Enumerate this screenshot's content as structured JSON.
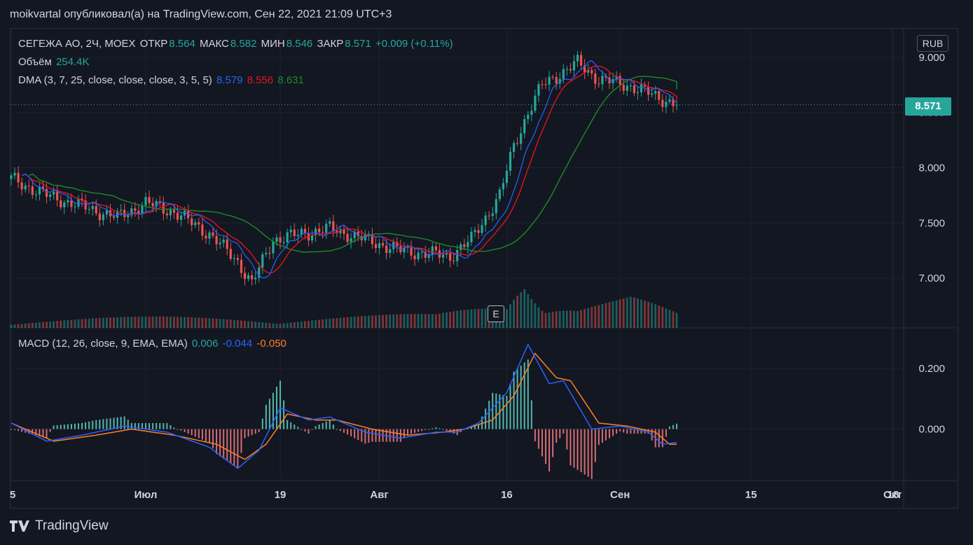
{
  "header": {
    "publisher_line": "moikvartal опубликовал(а) на TradingView.com, Сен 22, 2021 21:09 UTC+3"
  },
  "legend": {
    "symbol": "СЕГЕЖА АО, 2Ч, MOEX",
    "open_label": "ОТКР",
    "open": "8.564",
    "high_label": "МАКС",
    "high": "8.582",
    "low_label": "МИН",
    "low": "8.546",
    "close_label": "ЗАКР",
    "close": "8.571",
    "change": "+0.009 (+0.11%)",
    "volume_label": "Объём",
    "volume": "254.4K",
    "dma_label": "DMA (3, 7, 25, close, close, close, 3, 5, 5)",
    "dma_v1": "8.579",
    "dma_v2": "8.556",
    "dma_v3": "8.631",
    "macd_label": "MACD (12, 26, close, 9, EMA, EMA)",
    "macd_hist": "0.006",
    "macd_line": "-0.044",
    "macd_signal": "-0.050"
  },
  "currency": "RUB",
  "last_price": "8.571",
  "earnings_marker": "E",
  "branding": "TradingView",
  "colors": {
    "up": "#26a69a",
    "down": "#ef5350",
    "dma_fast": "#2962ff",
    "dma_mid": "#e0141e",
    "dma_slow": "#1c8a2a",
    "macd": "#2962ff",
    "signal": "#ff7f27"
  },
  "chart_data": [
    {
      "type": "candlestick",
      "title": "",
      "y_ticks": [
        "9.000",
        "8.500",
        "8.000",
        "7.500",
        "7.000"
      ],
      "ylim": [
        6.55,
        9.05
      ],
      "x_ticks": [
        "5",
        "Июл",
        "19",
        "Авг",
        "16",
        "Сен",
        "15",
        "Окт",
        "18"
      ],
      "close_path": [
        {
          "t": 0,
          "v": 7.9
        },
        {
          "t": 10,
          "v": 7.75
        },
        {
          "t": 20,
          "v": 7.65
        },
        {
          "t": 30,
          "v": 7.55
        },
        {
          "t": 38,
          "v": 7.68
        },
        {
          "t": 46,
          "v": 7.6
        },
        {
          "t": 56,
          "v": 7.4
        },
        {
          "t": 64,
          "v": 7.15
        },
        {
          "t": 68,
          "v": 6.95
        },
        {
          "t": 74,
          "v": 7.35
        },
        {
          "t": 82,
          "v": 7.4
        },
        {
          "t": 90,
          "v": 7.45
        },
        {
          "t": 100,
          "v": 7.35
        },
        {
          "t": 110,
          "v": 7.25
        },
        {
          "t": 124,
          "v": 7.2
        },
        {
          "t": 130,
          "v": 7.35
        },
        {
          "t": 138,
          "v": 7.75
        },
        {
          "t": 142,
          "v": 8.2
        },
        {
          "t": 146,
          "v": 8.5
        },
        {
          "t": 150,
          "v": 8.75
        },
        {
          "t": 160,
          "v": 8.95
        },
        {
          "t": 166,
          "v": 8.8
        },
        {
          "t": 174,
          "v": 8.75
        },
        {
          "t": 182,
          "v": 8.65
        },
        {
          "t": 188,
          "v": 8.571
        }
      ],
      "volume_path": [
        {
          "t": 0,
          "v": 0.1
        },
        {
          "t": 60,
          "v": 0.12
        },
        {
          "t": 120,
          "v": 0.14
        },
        {
          "t": 140,
          "v": 0.3
        },
        {
          "t": 145,
          "v": 0.8
        },
        {
          "t": 150,
          "v": 0.5
        },
        {
          "t": 160,
          "v": 0.3
        },
        {
          "t": 175,
          "v": 0.35
        },
        {
          "t": 188,
          "v": 0.15
        }
      ],
      "series": [
        {
          "name": "Объём",
          "last": "254.4K"
        }
      ],
      "grid": true
    },
    {
      "type": "line",
      "title": "MACD (12, 26, close, 9, EMA, EMA)",
      "y_ticks": [
        "0.200",
        "0.000"
      ],
      "ylim": [
        -0.17,
        0.33
      ],
      "macd_path": [
        {
          "t": 0,
          "v": 0.02
        },
        {
          "t": 10,
          "v": -0.04
        },
        {
          "t": 20,
          "v": -0.02
        },
        {
          "t": 32,
          "v": 0.01
        },
        {
          "t": 44,
          "v": -0.01
        },
        {
          "t": 56,
          "v": -0.06
        },
        {
          "t": 64,
          "v": -0.13
        },
        {
          "t": 70,
          "v": -0.07
        },
        {
          "t": 76,
          "v": 0.07
        },
        {
          "t": 84,
          "v": 0.03
        },
        {
          "t": 90,
          "v": 0.04
        },
        {
          "t": 100,
          "v": -0.01
        },
        {
          "t": 110,
          "v": -0.03
        },
        {
          "t": 120,
          "v": -0.01
        },
        {
          "t": 126,
          "v": -0.01
        },
        {
          "t": 132,
          "v": 0.02
        },
        {
          "t": 140,
          "v": 0.12
        },
        {
          "t": 146,
          "v": 0.28
        },
        {
          "t": 152,
          "v": 0.15
        },
        {
          "t": 156,
          "v": 0.16
        },
        {
          "t": 164,
          "v": 0.0
        },
        {
          "t": 172,
          "v": 0.01
        },
        {
          "t": 180,
          "v": -0.01
        },
        {
          "t": 184,
          "v": -0.05
        },
        {
          "t": 188,
          "v": -0.044
        }
      ],
      "signal_path": [
        {
          "t": 0,
          "v": 0.02
        },
        {
          "t": 12,
          "v": -0.04
        },
        {
          "t": 24,
          "v": -0.02
        },
        {
          "t": 34,
          "v": 0.0
        },
        {
          "t": 46,
          "v": -0.02
        },
        {
          "t": 58,
          "v": -0.05
        },
        {
          "t": 66,
          "v": -0.1
        },
        {
          "t": 72,
          "v": -0.05
        },
        {
          "t": 78,
          "v": 0.05
        },
        {
          "t": 86,
          "v": 0.03
        },
        {
          "t": 92,
          "v": 0.03
        },
        {
          "t": 102,
          "v": 0.0
        },
        {
          "t": 112,
          "v": -0.02
        },
        {
          "t": 122,
          "v": -0.01
        },
        {
          "t": 128,
          "v": 0.0
        },
        {
          "t": 136,
          "v": 0.03
        },
        {
          "t": 142,
          "v": 0.11
        },
        {
          "t": 148,
          "v": 0.25
        },
        {
          "t": 154,
          "v": 0.17
        },
        {
          "t": 158,
          "v": 0.16
        },
        {
          "t": 166,
          "v": 0.02
        },
        {
          "t": 174,
          "v": 0.01
        },
        {
          "t": 182,
          "v": -0.01
        },
        {
          "t": 186,
          "v": -0.05
        },
        {
          "t": 188,
          "v": -0.05
        }
      ],
      "series": [
        {
          "name": "MACD",
          "last": "-0.044"
        },
        {
          "name": "Signal",
          "last": "-0.050"
        },
        {
          "name": "Histogram",
          "last": "0.006"
        }
      ],
      "grid": true
    }
  ]
}
